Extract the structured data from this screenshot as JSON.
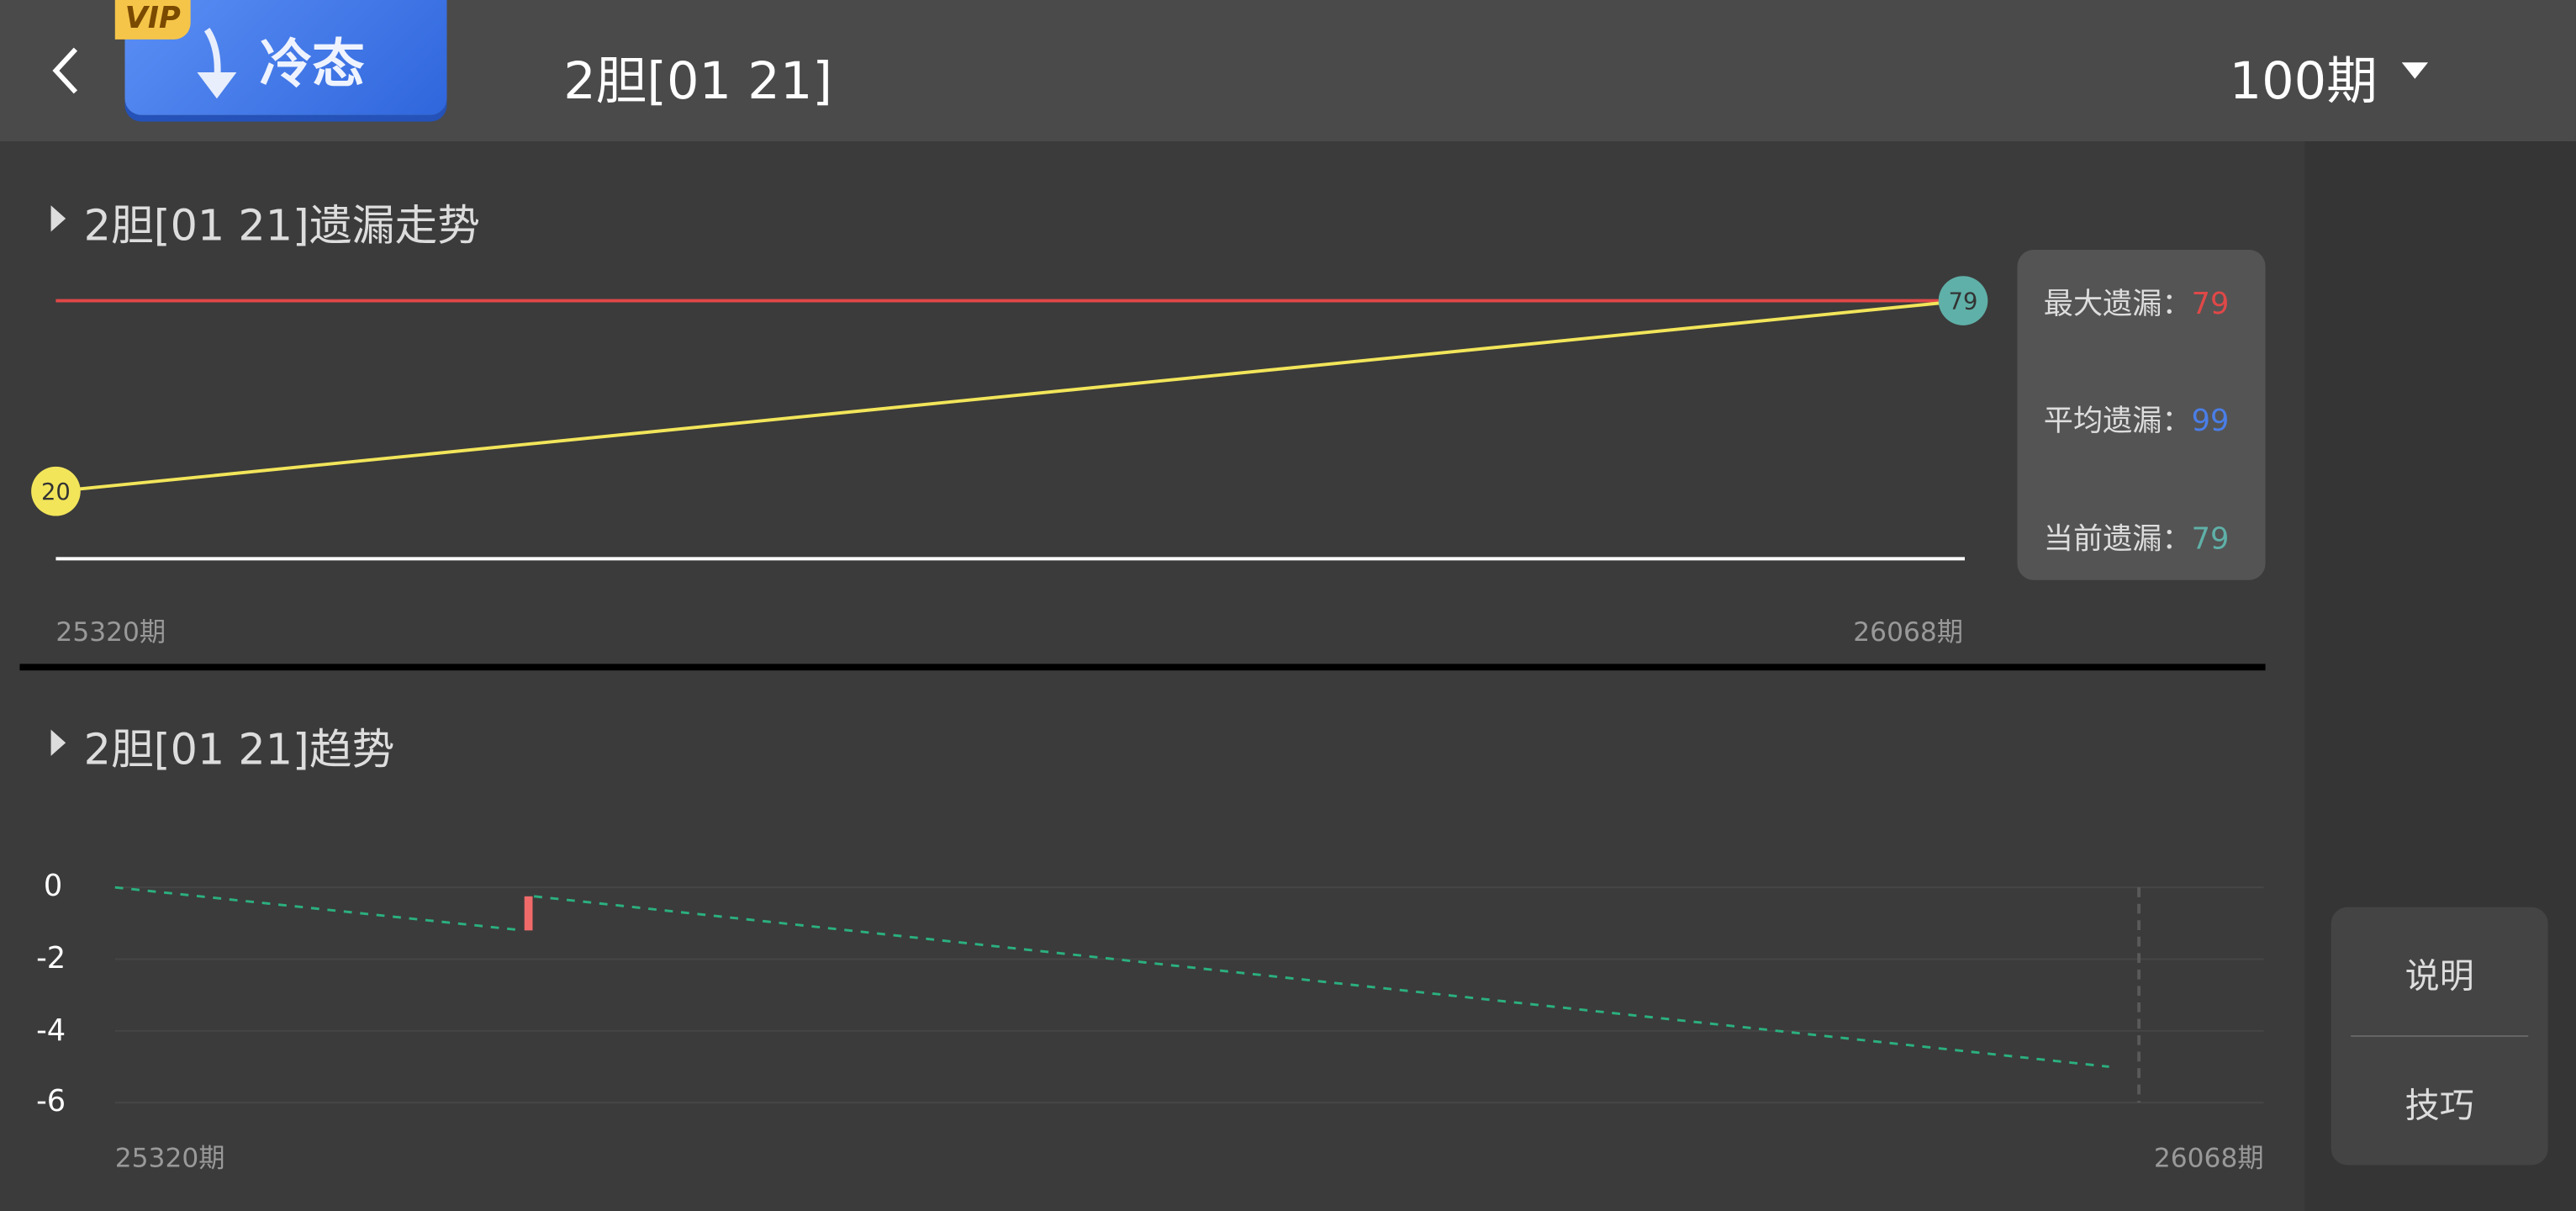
{
  "header": {
    "back_icon": "chevron-left-icon",
    "vip_badge": "VIP",
    "vip_button_label": "冷态",
    "title": "2胆[01 21]",
    "period_select": "100期"
  },
  "section1": {
    "title": "2胆[01 21]遗漏走势",
    "stats": [
      {
        "label": "最大遗漏：",
        "value": "79",
        "color": "#e04848"
      },
      {
        "label": "平均遗漏：",
        "value": "99",
        "color": "#4a7ee8"
      },
      {
        "label": "当前遗漏：",
        "value": "79",
        "color": "#5fb0a8"
      }
    ]
  },
  "section2": {
    "title": "2胆[01 21]趋势"
  },
  "side_buttons": [
    "说明",
    "技巧"
  ],
  "chart_data": [
    {
      "type": "line",
      "x_labels": [
        "25320期",
        "26068期"
      ],
      "series": [
        {
          "values": [
            20,
            79
          ],
          "color": "#f2e55a",
          "point_labels": [
            "20",
            "79"
          ]
        }
      ],
      "max_line": {
        "value": 79,
        "color": "#e04848"
      },
      "ylim": [
        0,
        79
      ],
      "point_colors": [
        "#f2e55a",
        "#5fb0a8"
      ]
    },
    {
      "type": "line",
      "x_labels": [
        "25320期",
        "26068期"
      ],
      "y_ticks": [
        "0",
        "-2",
        "-4",
        "-6"
      ],
      "ylim": [
        -6,
        0
      ],
      "grid": true,
      "segments": [
        {
          "x": [
            0,
            0.19
          ],
          "y": [
            0,
            -1.2
          ],
          "color": "#2bb07f",
          "dashed": true
        },
        {
          "x": [
            0.195,
            0.928
          ],
          "y": [
            -0.25,
            -5.0
          ],
          "color": "#2bb07f",
          "dashed": true
        }
      ],
      "hit_bar": {
        "x": 0.189,
        "y": [
          -0.25,
          -1.2
        ],
        "color": "#f06a6a"
      }
    }
  ]
}
